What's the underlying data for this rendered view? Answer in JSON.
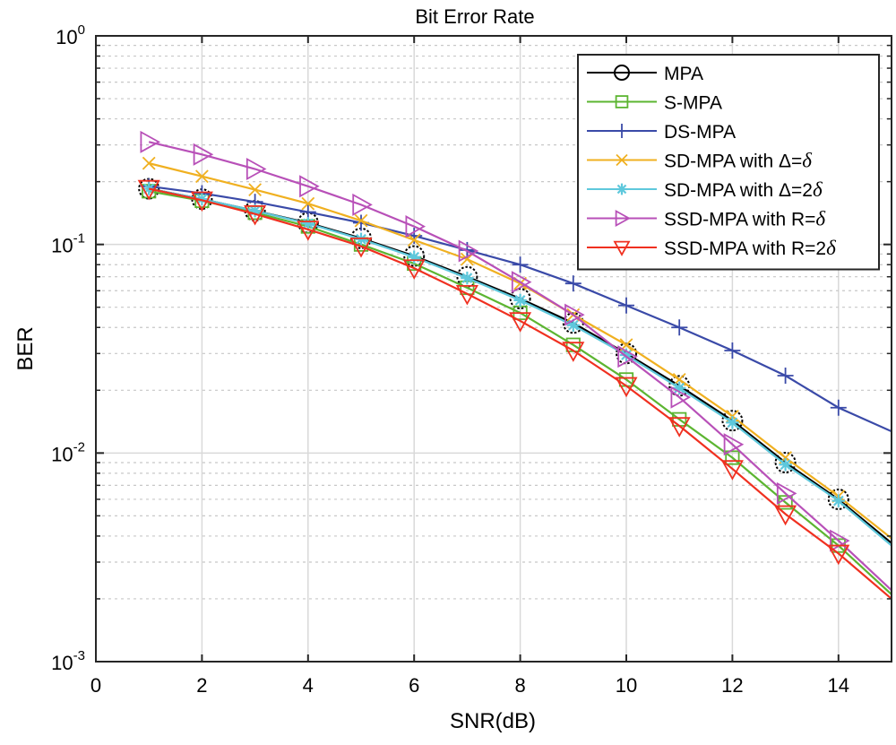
{
  "chart_data": {
    "type": "line",
    "title": "Bit Error Rate",
    "xlabel": "SNR(dB)",
    "ylabel": "BER",
    "xlim": [
      0,
      15
    ],
    "ylim": [
      0.001,
      1
    ],
    "yscale": "log",
    "grid": true,
    "legend_position": "top-right",
    "x_ticks": [
      0,
      2,
      4,
      6,
      8,
      10,
      12,
      14
    ],
    "x_tick_labels": [
      "0",
      "2",
      "4",
      "6",
      "8",
      "10",
      "12",
      "14"
    ],
    "y_ticks": [
      0.001,
      0.01,
      0.1,
      1
    ],
    "y_tick_labels": [
      {
        "base": "10",
        "exp": "-3"
      },
      {
        "base": "10",
        "exp": "-2"
      },
      {
        "base": "10",
        "exp": "-1"
      },
      {
        "base": "10",
        "exp": "0"
      }
    ],
    "x": [
      1,
      2,
      3,
      4,
      5,
      6,
      7,
      8,
      9,
      10,
      11,
      12,
      13,
      14,
      15
    ],
    "series": [
      {
        "name": "MPA",
        "label_prefix": "MPA",
        "label_symbol": "",
        "color": "#000000",
        "marker": "circle",
        "marker_style": "dashed",
        "values": [
          0.185,
          0.165,
          0.145,
          0.127,
          0.107,
          0.088,
          0.07,
          0.055,
          0.042,
          0.03,
          0.021,
          0.0143,
          0.009,
          0.006,
          0.0037
        ]
      },
      {
        "name": "S-MPA",
        "label_prefix": "S-MPA",
        "label_symbol": "",
        "color": "#5cb531",
        "marker": "square",
        "values": [
          0.18,
          0.162,
          0.142,
          0.122,
          0.1,
          0.081,
          0.062,
          0.047,
          0.033,
          0.0225,
          0.0145,
          0.0095,
          0.0058,
          0.0036,
          0.0021
        ]
      },
      {
        "name": "DS-MPA",
        "label_prefix": "DS-MPA",
        "label_symbol": "",
        "color": "#3a4aa8",
        "marker": "plus",
        "values": [
          0.19,
          0.176,
          0.16,
          0.143,
          0.127,
          0.11,
          0.094,
          0.08,
          0.065,
          0.051,
          0.04,
          0.031,
          0.0235,
          0.0165,
          0.0127
        ]
      },
      {
        "name": "SD-MPA with Δ=δ",
        "label_prefix": "SD-MPA with Δ=",
        "label_symbol": "δ",
        "color": "#f0b020",
        "marker": "x",
        "values": [
          0.245,
          0.212,
          0.183,
          0.157,
          0.13,
          0.105,
          0.085,
          0.065,
          0.046,
          0.033,
          0.0225,
          0.015,
          0.0095,
          0.0062,
          0.0039
        ]
      },
      {
        "name": "SD-MPA with Δ=2δ",
        "label_prefix": "SD-MPA with Δ=2",
        "label_symbol": "δ",
        "color": "#5ec8dc",
        "marker": "star",
        "values": [
          0.185,
          0.165,
          0.145,
          0.126,
          0.106,
          0.087,
          0.069,
          0.054,
          0.041,
          0.0295,
          0.0205,
          0.014,
          0.0088,
          0.0059,
          0.0036
        ]
      },
      {
        "name": "SSD-MPA with R=δ",
        "label_prefix": "SSD-MPA with R=",
        "label_symbol": "δ",
        "color": "#b850b8",
        "marker": "triangle-right",
        "values": [
          0.31,
          0.27,
          0.23,
          0.19,
          0.155,
          0.122,
          0.093,
          0.066,
          0.046,
          0.029,
          0.0185,
          0.011,
          0.0064,
          0.0038,
          0.0022
        ]
      },
      {
        "name": "SSD-MPA with R=2δ",
        "label_prefix": "SSD-MPA with R=2",
        "label_symbol": "δ",
        "color": "#f03020",
        "marker": "triangle-down",
        "values": [
          0.185,
          0.163,
          0.14,
          0.118,
          0.098,
          0.077,
          0.058,
          0.043,
          0.031,
          0.021,
          0.0135,
          0.0084,
          0.0051,
          0.0033,
          0.002
        ]
      }
    ]
  }
}
